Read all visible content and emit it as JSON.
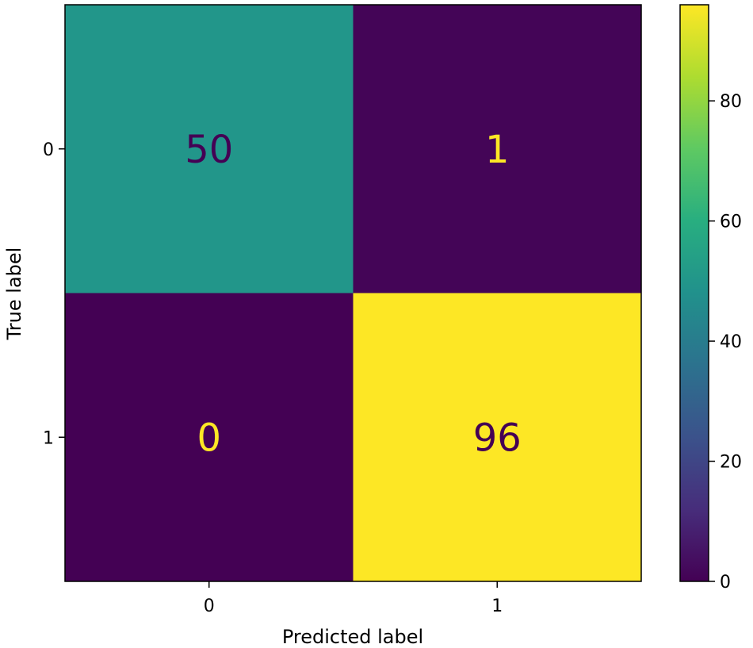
{
  "chart_data": {
    "type": "heatmap",
    "title": "",
    "xlabel": "Predicted label",
    "ylabel": "True label",
    "x_categories": [
      "0",
      "1"
    ],
    "y_categories": [
      "0",
      "1"
    ],
    "values": [
      [
        50,
        1
      ],
      [
        0,
        96
      ]
    ],
    "colormap": "viridis",
    "colorbar": {
      "range": [
        0,
        96
      ],
      "ticks": [
        0,
        20,
        40,
        60,
        80
      ],
      "tick_labels": [
        "0",
        "20",
        "40",
        "60",
        "80"
      ]
    },
    "colors": {
      "low": "#440154",
      "mid": "#21918c",
      "high": "#fde725",
      "text_on_dark": "#fde725",
      "text_on_light": "#440154"
    }
  }
}
